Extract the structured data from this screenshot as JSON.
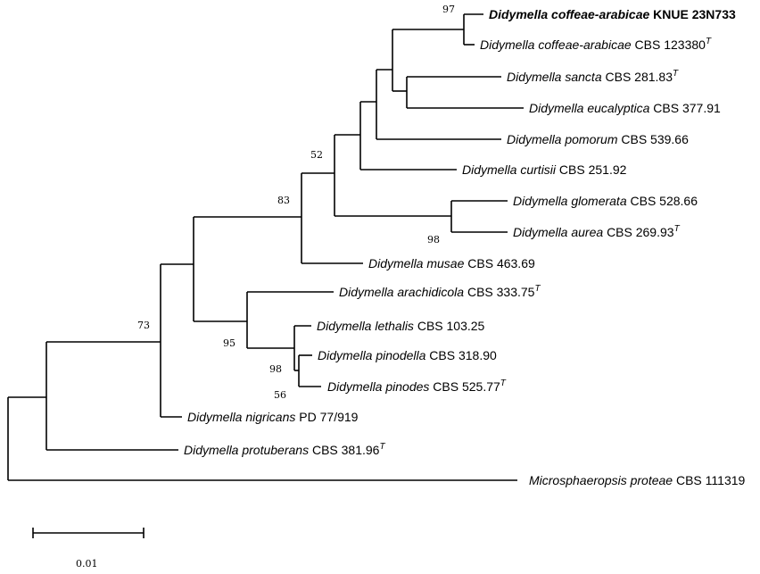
{
  "taxa": [
    {
      "id": "t1",
      "species": "Didymella coffeae-arabicae",
      "strain": "KNUE 23N733",
      "type": "",
      "bold": true
    },
    {
      "id": "t2",
      "species": "Didymella coffeae-arabicae",
      "strain": "CBS 123380",
      "type": "T",
      "bold": false
    },
    {
      "id": "t3",
      "species": "Didymella sancta",
      "strain": "CBS 281.83",
      "type": "T",
      "bold": false
    },
    {
      "id": "t4",
      "species": "Didymella eucalyptica",
      "strain": "CBS 377.91",
      "type": "",
      "bold": false
    },
    {
      "id": "t5",
      "species": "Didymella pomorum",
      "strain": "CBS 539.66",
      "type": "",
      "bold": false
    },
    {
      "id": "t6",
      "species": "Didymella curtisii",
      "strain": "CBS 251.92",
      "type": "",
      "bold": false
    },
    {
      "id": "t7",
      "species": "Didymella glomerata",
      "strain": "CBS 528.66",
      "type": "",
      "bold": false
    },
    {
      "id": "t8",
      "species": "Didymella aurea",
      "strain": "CBS 269.93",
      "type": "T",
      "bold": false
    },
    {
      "id": "t9",
      "species": "Didymella musae",
      "strain": "CBS 463.69",
      "type": "",
      "bold": false
    },
    {
      "id": "t10",
      "species": "Didymella arachidicola",
      "strain": "CBS 333.75",
      "type": "T",
      "bold": false
    },
    {
      "id": "t11",
      "species": "Didymella lethalis",
      "strain": "CBS 103.25",
      "type": "",
      "bold": false
    },
    {
      "id": "t12",
      "species": "Didymella pinodella",
      "strain": "CBS 318.90",
      "type": "",
      "bold": false
    },
    {
      "id": "t13",
      "species": "Didymella pinodes",
      "strain": "CBS 525.77",
      "type": "T",
      "bold": false
    },
    {
      "id": "t14",
      "species": "Didymella nigricans",
      "strain": "PD 77/919",
      "type": "",
      "bold": false
    },
    {
      "id": "t15",
      "species": "Didymella protuberans",
      "strain": "CBS 381.96",
      "type": "T",
      "bold": false
    },
    {
      "id": "t16",
      "species": "Microsphaeropsis proteae",
      "strain": "CBS 111319",
      "type": "",
      "bold": false
    }
  ],
  "bootstrap": [
    {
      "node": "coffeae-clade",
      "value": "97"
    },
    {
      "node": "curtisii-clade",
      "value": "52"
    },
    {
      "node": "musae-clade",
      "value": "83"
    },
    {
      "node": "glomerata-aurea",
      "value": "98"
    },
    {
      "node": "didymella-ingroup",
      "value": "73"
    },
    {
      "node": "arachidicola-clade",
      "value": "95"
    },
    {
      "node": "lethalis-clade",
      "value": "98"
    },
    {
      "node": "pinodella-pinodes",
      "value": "56"
    }
  ],
  "scale_bar": {
    "label": "0.01"
  }
}
